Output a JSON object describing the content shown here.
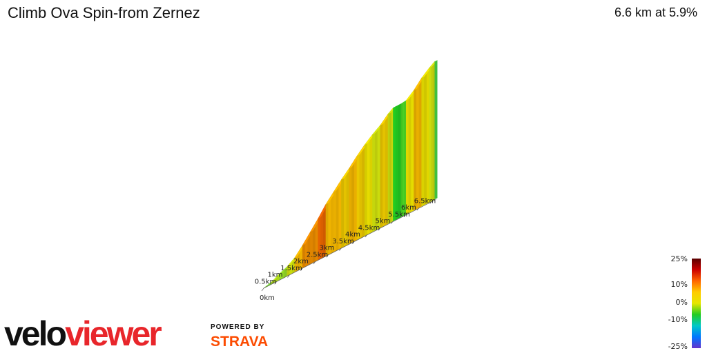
{
  "header": {
    "title": "Climb Ova Spin-from Zernez",
    "summary": "6.6 km at 5.9%"
  },
  "branding": {
    "logo_part1": "velo",
    "logo_part2": "viewer",
    "powered_by": "POWERED BY",
    "strava": "STRAVA",
    "strava_color": "#fc4c02"
  },
  "legend": {
    "labels": [
      "25%",
      "10%",
      "0%",
      "-10%",
      "-25%"
    ],
    "colors": [
      "#5a0000",
      "#cc0000",
      "#ff6600",
      "#ffcc00",
      "#e6e600",
      "#22cc22",
      "#00c8c8",
      "#0077ff",
      "#6633cc"
    ]
  },
  "chart_data": {
    "type": "area",
    "title": "Climb Ova Spin-from Zernez",
    "distance_km": 6.6,
    "avg_gradient_pct": 5.9,
    "x_ticks": [
      "0km",
      "0.5km",
      "1km",
      "1.5km",
      "2km",
      "2.5km",
      "3km",
      "3.5km",
      "4km",
      "4.5km",
      "5km",
      "5.5km",
      "6km",
      "6.5km"
    ],
    "x_tick_values": [
      0,
      0.5,
      1,
      1.5,
      2,
      2.5,
      3,
      3.5,
      4,
      4.5,
      5,
      5.5,
      6,
      6.5
    ],
    "color_scale": {
      "min": -25,
      "max": 25,
      "stops": [
        25,
        10,
        0,
        -10,
        -25
      ]
    },
    "segments": [
      {
        "from": 0.0,
        "to": 0.3,
        "gradient": 2
      },
      {
        "from": 0.3,
        "to": 0.6,
        "gradient": 4
      },
      {
        "from": 0.6,
        "to": 0.9,
        "gradient": 3
      },
      {
        "from": 0.9,
        "to": 1.2,
        "gradient": 5
      },
      {
        "from": 1.2,
        "to": 1.5,
        "gradient": 8
      },
      {
        "from": 1.5,
        "to": 1.8,
        "gradient": 9
      },
      {
        "from": 1.8,
        "to": 2.1,
        "gradient": 9
      },
      {
        "from": 2.1,
        "to": 2.4,
        "gradient": 10
      },
      {
        "from": 2.4,
        "to": 2.7,
        "gradient": 8
      },
      {
        "from": 2.7,
        "to": 3.0,
        "gradient": 8
      },
      {
        "from": 3.0,
        "to": 3.3,
        "gradient": 7
      },
      {
        "from": 3.3,
        "to": 3.6,
        "gradient": 8
      },
      {
        "from": 3.6,
        "to": 3.9,
        "gradient": 7
      },
      {
        "from": 3.9,
        "to": 4.2,
        "gradient": 6
      },
      {
        "from": 4.2,
        "to": 4.5,
        "gradient": 5
      },
      {
        "from": 4.5,
        "to": 4.8,
        "gradient": 7
      },
      {
        "from": 4.8,
        "to": 5.0,
        "gradient": 5
      },
      {
        "from": 5.0,
        "to": 5.3,
        "gradient": 0
      },
      {
        "from": 5.3,
        "to": 5.5,
        "gradient": 1
      },
      {
        "from": 5.5,
        "to": 5.8,
        "gradient": 6
      },
      {
        "from": 5.8,
        "to": 6.1,
        "gradient": 8
      },
      {
        "from": 6.1,
        "to": 6.4,
        "gradient": 6
      },
      {
        "from": 6.4,
        "to": 6.6,
        "gradient": 5
      }
    ]
  }
}
